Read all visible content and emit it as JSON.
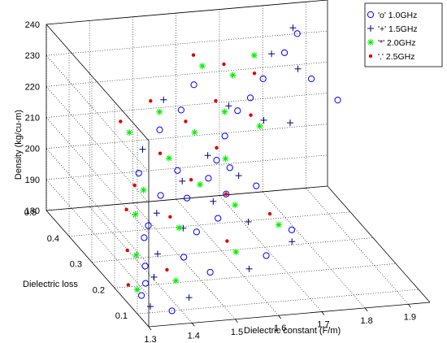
{
  "chart_data": {
    "type": "scatter",
    "projection": "3d",
    "xlabel": "Dielectric constant (F/m)",
    "ylabel": "Dielectric loss",
    "zlabel": "Density (kg/cu-m)",
    "xlim": [
      1.3,
      1.95
    ],
    "ylim": [
      0.05,
      0.5
    ],
    "zlim": [
      180,
      240
    ],
    "xticks": [
      "1.3",
      "1.4",
      "1.5",
      "1.6",
      "1.7",
      "1.8",
      "1.9"
    ],
    "yticks": [
      "0.1",
      "0.2",
      "0.3",
      "0.4",
      "0.5"
    ],
    "zticks": [
      "180",
      "190",
      "200",
      "210",
      "220",
      "230",
      "240"
    ],
    "grid": true,
    "legend_position": "top-right",
    "series": [
      {
        "name": "'o' 1.0GHz",
        "marker": "circle",
        "color": "#0000ff",
        "points": [
          [
            1.32,
            0.12,
            184
          ],
          [
            1.34,
            0.14,
            186
          ],
          [
            1.36,
            0.18,
            188
          ],
          [
            1.4,
            0.26,
            190
          ],
          [
            1.42,
            0.28,
            192
          ],
          [
            1.46,
            0.2,
            188
          ],
          [
            1.48,
            0.34,
            196
          ],
          [
            1.5,
            0.22,
            194
          ],
          [
            1.52,
            0.3,
            198
          ],
          [
            1.54,
            0.38,
            200
          ],
          [
            1.56,
            0.24,
            196
          ],
          [
            1.58,
            0.32,
            202
          ],
          [
            1.6,
            0.28,
            200
          ],
          [
            1.62,
            0.36,
            204
          ],
          [
            1.64,
            0.34,
            203
          ],
          [
            1.66,
            0.4,
            208
          ],
          [
            1.7,
            0.42,
            214
          ],
          [
            1.74,
            0.44,
            216
          ],
          [
            1.78,
            0.46,
            220
          ],
          [
            1.84,
            0.48,
            226
          ],
          [
            1.88,
            0.5,
            230
          ],
          [
            1.44,
            0.36,
            202
          ],
          [
            1.52,
            0.42,
            210
          ],
          [
            1.58,
            0.44,
            214
          ],
          [
            1.68,
            0.3,
            200
          ],
          [
            1.72,
            0.22,
            192
          ],
          [
            1.64,
            0.18,
            188
          ],
          [
            1.5,
            0.16,
            186
          ],
          [
            1.9,
            0.36,
            220
          ],
          [
            1.86,
            0.4,
            224
          ],
          [
            1.38,
            0.1,
            180
          ],
          [
            1.62,
            0.46,
            220
          ]
        ]
      },
      {
        "name": "'+' 1.5GHz",
        "marker": "plus",
        "color": "#000080",
        "points": [
          [
            1.33,
            0.1,
            182
          ],
          [
            1.37,
            0.16,
            186
          ],
          [
            1.41,
            0.22,
            188
          ],
          [
            1.45,
            0.3,
            194
          ],
          [
            1.49,
            0.26,
            192
          ],
          [
            1.53,
            0.34,
            200
          ],
          [
            1.57,
            0.28,
            198
          ],
          [
            1.61,
            0.38,
            204
          ],
          [
            1.65,
            0.32,
            202
          ],
          [
            1.69,
            0.44,
            214
          ],
          [
            1.75,
            0.4,
            212
          ],
          [
            1.81,
            0.48,
            226
          ],
          [
            1.87,
            0.5,
            232
          ],
          [
            1.47,
            0.4,
            206
          ],
          [
            1.55,
            0.46,
            216
          ],
          [
            1.63,
            0.24,
            194
          ],
          [
            1.71,
            0.2,
            190
          ],
          [
            1.59,
            0.16,
            186
          ],
          [
            1.43,
            0.12,
            182
          ],
          [
            1.79,
            0.36,
            214
          ],
          [
            1.85,
            0.44,
            224
          ]
        ]
      },
      {
        "name": "'*' 2.0GHz",
        "marker": "star",
        "color": "#00ee00",
        "points": [
          [
            1.31,
            0.12,
            186
          ],
          [
            1.35,
            0.2,
            190
          ],
          [
            1.39,
            0.28,
            196
          ],
          [
            1.43,
            0.32,
            200
          ],
          [
            1.47,
            0.24,
            194
          ],
          [
            1.51,
            0.36,
            206
          ],
          [
            1.55,
            0.3,
            202
          ],
          [
            1.59,
            0.4,
            210
          ],
          [
            1.63,
            0.34,
            206
          ],
          [
            1.67,
            0.42,
            214
          ],
          [
            1.71,
            0.46,
            222
          ],
          [
            1.77,
            0.48,
            226
          ],
          [
            1.45,
            0.42,
            210
          ],
          [
            1.53,
            0.44,
            214
          ],
          [
            1.61,
            0.26,
            198
          ],
          [
            1.69,
            0.22,
            194
          ],
          [
            1.57,
            0.18,
            190
          ],
          [
            1.41,
            0.14,
            186
          ],
          [
            1.73,
            0.38,
            212
          ],
          [
            1.65,
            0.48,
            224
          ]
        ]
      },
      {
        "name": "'.' 2.5GHz",
        "marker": "dot",
        "color": "#dd0000",
        "points": [
          [
            1.3,
            0.14,
            186
          ],
          [
            1.34,
            0.22,
            190
          ],
          [
            1.38,
            0.3,
            196
          ],
          [
            1.42,
            0.34,
            200
          ],
          [
            1.46,
            0.26,
            196
          ],
          [
            1.5,
            0.38,
            206
          ],
          [
            1.54,
            0.32,
            202
          ],
          [
            1.58,
            0.42,
            212
          ],
          [
            1.62,
            0.36,
            208
          ],
          [
            1.66,
            0.44,
            216
          ],
          [
            1.7,
            0.48,
            224
          ],
          [
            1.76,
            0.46,
            222
          ],
          [
            1.44,
            0.44,
            212
          ],
          [
            1.52,
            0.46,
            216
          ],
          [
            1.6,
            0.28,
            200
          ],
          [
            1.68,
            0.24,
            196
          ],
          [
            1.56,
            0.2,
            192
          ],
          [
            1.4,
            0.16,
            188
          ],
          [
            1.72,
            0.4,
            214
          ],
          [
            1.64,
            0.5,
            226
          ]
        ]
      }
    ]
  }
}
